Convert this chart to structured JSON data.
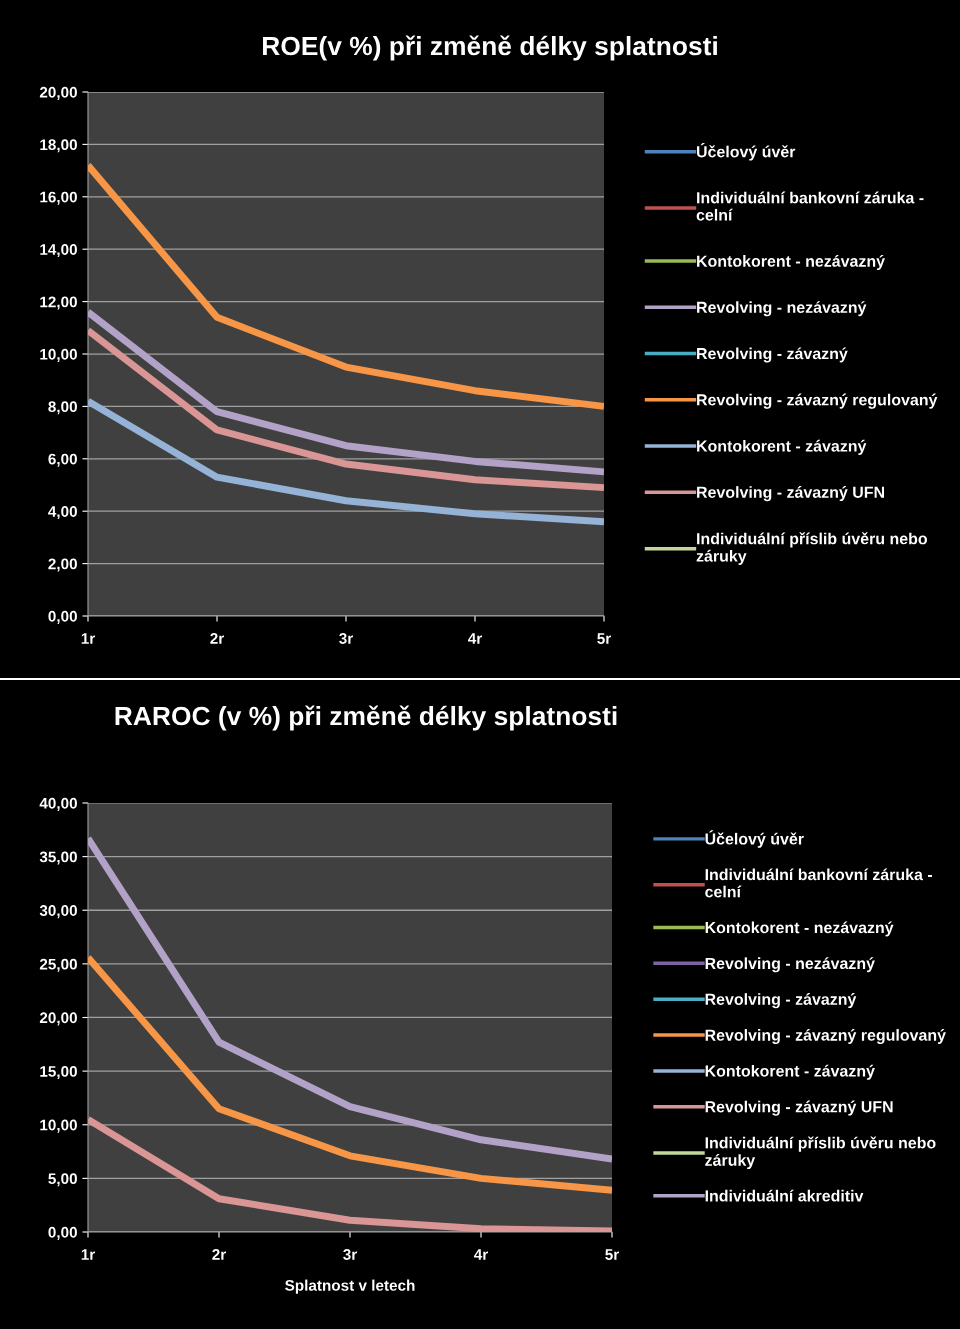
{
  "chart_data": [
    {
      "type": "line",
      "title": "ROE(v %) při změně délky splatnosti",
      "categories": [
        "1r",
        "2r",
        "3r",
        "4r",
        "5r"
      ],
      "ylim": [
        0,
        20
      ],
      "yticks": [
        {
          "value": 0,
          "label": "0,00"
        },
        {
          "value": 2,
          "label": "2,00"
        },
        {
          "value": 4,
          "label": "4,00"
        },
        {
          "value": 6,
          "label": "6,00"
        },
        {
          "value": 8,
          "label": "8,00"
        },
        {
          "value": 10,
          "label": "10,00"
        },
        {
          "value": 12,
          "label": "12,00"
        },
        {
          "value": 14,
          "label": "14,00"
        },
        {
          "value": 16,
          "label": "16,00"
        },
        {
          "value": 18,
          "label": "18,00"
        },
        {
          "value": 20,
          "label": "20,00"
        }
      ],
      "grid": "y",
      "legend": "right",
      "marker": "none",
      "line_style": "solid",
      "series": [
        {
          "name": "Účelový úvěr",
          "color": "#4f81bd",
          "values": [
            null,
            null,
            null,
            null,
            null
          ]
        },
        {
          "name": "Individuální bankovní záruka - celní",
          "color": "#c0504d",
          "values": [
            null,
            null,
            null,
            null,
            null
          ]
        },
        {
          "name": "Kontokorent - nezávazný",
          "color": "#9bbb59",
          "values": [
            null,
            null,
            null,
            null,
            null
          ]
        },
        {
          "name": "Revolving - nezávazný",
          "color": "#b3a2c7",
          "values": [
            11.6,
            7.8,
            6.5,
            5.9,
            5.5
          ]
        },
        {
          "name": "Revolving - závazný",
          "color": "#4bacc6",
          "values": [
            null,
            null,
            null,
            null,
            null
          ]
        },
        {
          "name": "Revolving - závazný regulovaný",
          "color": "#f79646",
          "values": [
            17.2,
            11.4,
            9.5,
            8.6,
            8.0
          ]
        },
        {
          "name": "Kontokorent - závazný",
          "color": "#95b3d7",
          "values": [
            8.2,
            5.3,
            4.4,
            3.9,
            3.6
          ]
        },
        {
          "name": "Revolving - závazný UFN",
          "color": "#d99694",
          "values": [
            10.9,
            7.1,
            5.8,
            5.2,
            4.9
          ]
        },
        {
          "name": "Individuální příslib úvěru nebo záruky",
          "color": "#c3d69b",
          "values": [
            null,
            null,
            null,
            null,
            null
          ]
        }
      ]
    },
    {
      "type": "line",
      "title": "RAROC (v %) při změně délky splatnosti",
      "xlabel": "Splatnost v letech",
      "categories": [
        "1r",
        "2r",
        "3r",
        "4r",
        "5r"
      ],
      "ylim": [
        0,
        40
      ],
      "yticks": [
        {
          "value": 0,
          "label": "0,00"
        },
        {
          "value": 5,
          "label": "5,00"
        },
        {
          "value": 10,
          "label": "10,00"
        },
        {
          "value": 15,
          "label": "15,00"
        },
        {
          "value": 20,
          "label": "20,00"
        },
        {
          "value": 25,
          "label": "25,00"
        },
        {
          "value": 30,
          "label": "30,00"
        },
        {
          "value": 35,
          "label": "35,00"
        },
        {
          "value": 40,
          "label": "40,00"
        }
      ],
      "grid": "y",
      "legend": "right",
      "marker": "none",
      "line_style": "solid",
      "series": [
        {
          "name": "Účelový úvěr",
          "color": "#4f81bd",
          "values": [
            null,
            null,
            null,
            null,
            null
          ]
        },
        {
          "name": "Individuální bankovní záruka - celní",
          "color": "#c0504d",
          "values": [
            null,
            null,
            null,
            null,
            null
          ]
        },
        {
          "name": "Kontokorent - nezávazný",
          "color": "#9bbb59",
          "values": [
            null,
            null,
            null,
            null,
            null
          ]
        },
        {
          "name": "Revolving - nezávazný",
          "color": "#8064a2",
          "values": [
            null,
            null,
            null,
            null,
            null
          ]
        },
        {
          "name": "Revolving - závazný",
          "color": "#4bacc6",
          "values": [
            null,
            null,
            null,
            null,
            null
          ]
        },
        {
          "name": "Revolving - závazný regulovaný",
          "color": "#f79646",
          "values": [
            25.6,
            11.5,
            7.1,
            5.0,
            3.9
          ]
        },
        {
          "name": "Kontokorent - závazný",
          "color": "#95b3d7",
          "values": [
            null,
            null,
            null,
            null,
            null
          ]
        },
        {
          "name": "Revolving - závazný UFN",
          "color": "#d99694",
          "values": [
            10.5,
            3.1,
            1.1,
            0.3,
            0.1
          ]
        },
        {
          "name": "Individuální příslib úvěru nebo záruky",
          "color": "#c3d69b",
          "values": [
            null,
            null,
            null,
            null,
            null
          ]
        },
        {
          "name": "Individuální akreditiv",
          "color": "#b3a2c7",
          "values": [
            36.7,
            17.7,
            11.7,
            8.6,
            6.8
          ]
        }
      ]
    }
  ]
}
